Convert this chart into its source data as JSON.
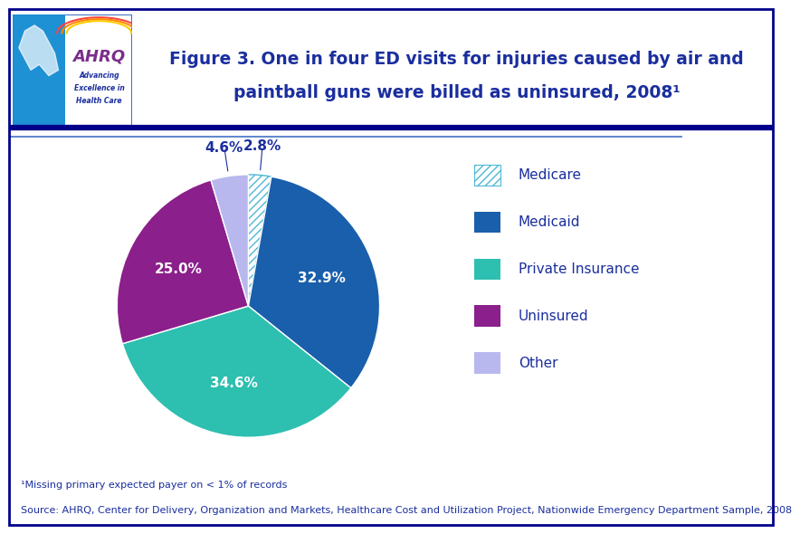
{
  "title_line1": "Figure 3. One in four ED visits for injuries caused by air and",
  "title_line2": "paintball guns were billed as uninsured, 2008¹",
  "slices": [
    2.8,
    32.9,
    34.6,
    25.0,
    4.6
  ],
  "labels": [
    "Medicare",
    "Medicaid",
    "Private Insurance",
    "Uninsured",
    "Other"
  ],
  "pct_labels": [
    "2.8%",
    "32.9%",
    "34.6%",
    "25.0%",
    "4.6%"
  ],
  "colors": [
    "white",
    "#1A5FAB",
    "#2DBFB0",
    "#8B1F8B",
    "#B8B8EE"
  ],
  "hatch_color": "#4DB8D4",
  "startangle": 90,
  "footnote1": "¹Missing primary expected payer on < 1% of records",
  "footnote2": "Source: AHRQ, Center for Delivery, Organization and Markets, Healthcare Cost and Utilization Project, Nationwide Emergency Department Sample, 2008",
  "title_color": "#1A2E9E",
  "legend_labels": [
    "Medicare",
    "Medicaid",
    "Private Insurance",
    "Uninsured",
    "Other"
  ],
  "legend_colors": [
    "white",
    "#1A5FAB",
    "#2DBFB0",
    "#8B1F8B",
    "#B8B8EE"
  ],
  "border_color": "#00008B",
  "separator_thick_color": "#00008B",
  "separator_thin_color": "#4472C4"
}
